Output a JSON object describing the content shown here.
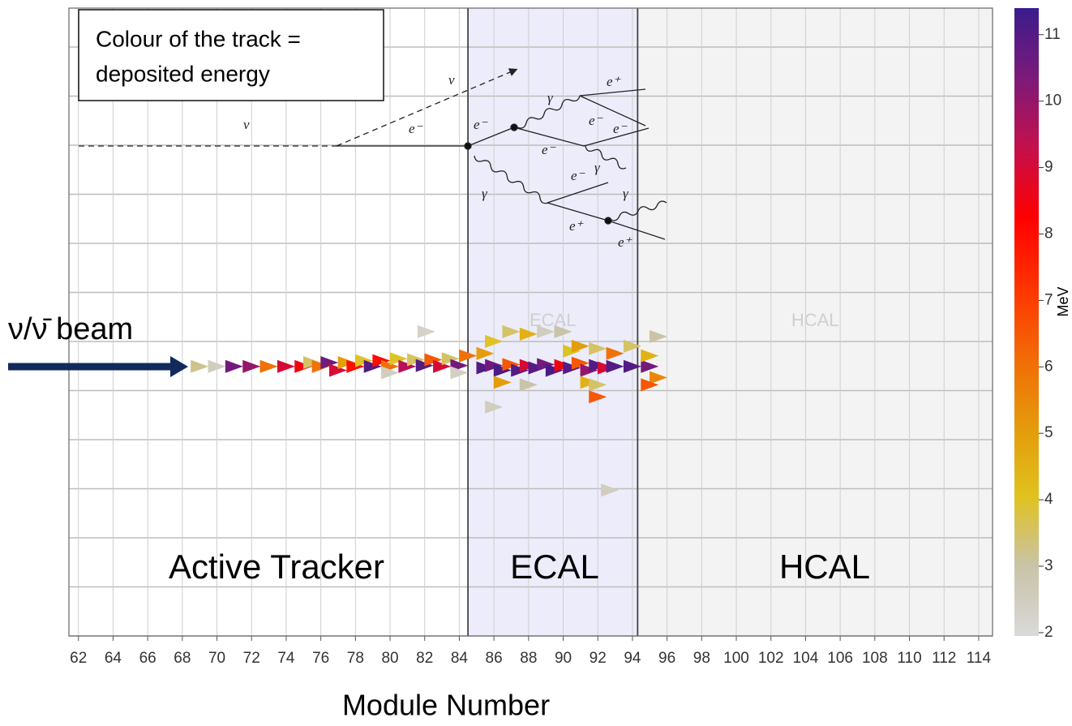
{
  "chart_data": {
    "type": "scatter",
    "xlabel": "Module Number",
    "xlim": [
      61.45,
      114.8
    ],
    "xticks": [
      62,
      64,
      66,
      68,
      70,
      72,
      74,
      76,
      78,
      80,
      82,
      84,
      86,
      88,
      90,
      92,
      94,
      96,
      98,
      100,
      102,
      104,
      106,
      108,
      110,
      112,
      114
    ],
    "ylim": [
      0,
      13
    ],
    "grid": true,
    "regions": [
      {
        "label": "ECAL",
        "from": 84.5,
        "to": 94.3,
        "color": "#ececfb"
      },
      {
        "label": "HCAL",
        "from": 94.3,
        "to": 114.8,
        "color": "#f3f3f3"
      }
    ],
    "region_labels": [
      "Active Tracker",
      "ECAL",
      "HCAL"
    ],
    "beam_label": "ν/ν̄ beam",
    "annotation": [
      "Colour of the track =",
      "deposited energy"
    ],
    "diagram_labels": [
      "ν",
      "ν",
      "e⁻",
      "e⁻",
      "γ",
      "γ",
      "e⁻",
      "e⁺",
      "e⁻",
      "e⁻",
      "γ",
      "e⁻",
      "e⁺",
      "γ",
      "e⁺"
    ],
    "colorbar": {
      "label": "MeV",
      "clim": [
        1.95,
        11.4
      ],
      "ticks": [
        2,
        3,
        4,
        5,
        6,
        7,
        8,
        9,
        10,
        11
      ],
      "colors": [
        "#d9d9d9",
        "#c9c3a8",
        "#e0c21e",
        "#e49a0a",
        "#f26a06",
        "#ff3300",
        "#ff0000",
        "#c4104c",
        "#7c1a7a",
        "#3b1c8c"
      ]
    },
    "hits": {
      "x": [
        69,
        70,
        71,
        72,
        73,
        74,
        75,
        75.5,
        76,
        76.5,
        77,
        77.5,
        78,
        78.5,
        79,
        79.5,
        80,
        80,
        80.5,
        81,
        81.5,
        82,
        82.5,
        83,
        83.5,
        84,
        84.5,
        84,
        82.1,
        85.5,
        86,
        86.5,
        87,
        87.5,
        88,
        88.5,
        89,
        89.5,
        90,
        90.5,
        91,
        91.5,
        92,
        92.5,
        93,
        85.5,
        86,
        86.5,
        87,
        88,
        88,
        89,
        90,
        90.5,
        91,
        91.5,
        92,
        92,
        93,
        92,
        86,
        92.7,
        94,
        95,
        95,
        95.5,
        95.5,
        94,
        95
      ],
      "y": [
        5.58,
        5.58,
        5.58,
        5.58,
        5.58,
        5.58,
        5.58,
        5.66,
        5.58,
        5.66,
        5.5,
        5.66,
        5.58,
        5.7,
        5.58,
        5.7,
        5.58,
        5.45,
        5.74,
        5.58,
        5.72,
        5.6,
        5.72,
        5.58,
        5.74,
        5.6,
        5.8,
        5.45,
        6.3,
        5.55,
        5.6,
        5.5,
        5.62,
        5.5,
        5.6,
        5.55,
        5.62,
        5.5,
        5.6,
        5.55,
        5.65,
        5.5,
        5.6,
        5.55,
        5.58,
        5.85,
        6.1,
        5.25,
        6.3,
        6.25,
        5.2,
        6.3,
        6.3,
        5.9,
        6.0,
        5.25,
        5.95,
        5.2,
        5.85,
        4.95,
        4.74,
        3.02,
        5.58,
        5.58,
        5.8,
        5.35,
        6.2,
        6.0,
        5.2
      ],
      "energy": [
        3.2,
        2.5,
        10.5,
        10,
        6,
        9,
        8.5,
        3.5,
        6,
        10.5,
        9,
        5,
        8,
        4,
        11,
        8,
        6,
        2.5,
        4,
        9.5,
        3.5,
        11,
        6.5,
        9,
        3.5,
        10.5,
        6,
        2.4,
        2.3,
        11,
        10.5,
        11.2,
        6.5,
        11,
        9,
        11,
        10.5,
        11.2,
        8.5,
        11,
        6.5,
        10,
        11,
        9,
        11,
        5,
        4,
        5,
        3.5,
        4.5,
        3,
        2.5,
        3,
        4,
        5,
        4.5,
        3.5,
        3.5,
        6,
        6.5,
        2.5,
        2.5,
        11,
        10.5,
        4.5,
        5.5,
        3,
        3.5,
        6.5
      ]
    }
  }
}
